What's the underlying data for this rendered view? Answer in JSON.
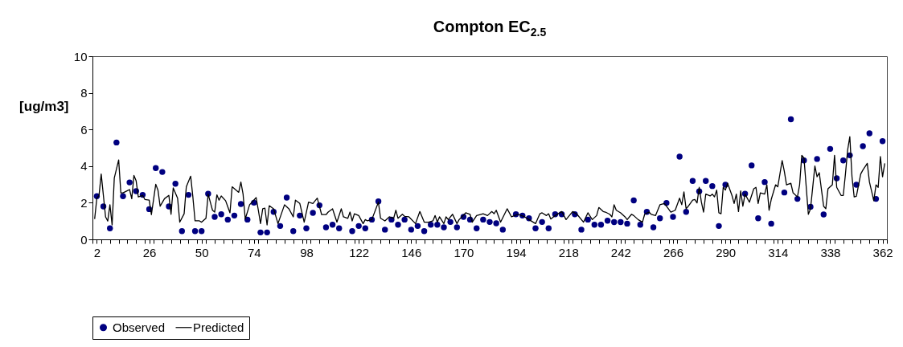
{
  "chart_data": {
    "type": "line",
    "title": "Compton  EC$_{2.5}$",
    "ylabel": "[ug/m3]",
    "legend": "bottom",
    "xlim": [
      0,
      364
    ],
    "xticks": [
      2,
      26,
      50,
      74,
      98,
      122,
      146,
      170,
      194,
      218,
      242,
      266,
      290,
      314,
      338,
      362,
      {
        "value": 0,
        "label": null
      },
      {
        "value": 4,
        "label": null
      },
      {
        "value": 8,
        "label": null
      },
      {
        "value": 12,
        "label": null
      },
      {
        "value": 16,
        "label": null
      },
      {
        "value": 20,
        "label": null
      },
      {
        "value": 24,
        "label": null
      },
      {
        "value": 28,
        "label": null
      },
      {
        "value": 32,
        "label": null
      },
      {
        "value": 36,
        "label": null
      },
      {
        "value": 40,
        "label": null
      },
      {
        "value": 44,
        "label": null
      },
      {
        "value": 48,
        "label": null
      },
      {
        "value": 52,
        "label": null
      },
      {
        "value": 56,
        "label": null
      },
      {
        "value": 60,
        "label": null
      },
      {
        "value": 64,
        "label": null
      },
      {
        "value": 68,
        "label": null
      },
      {
        "value": 72,
        "label": null
      },
      {
        "value": 76,
        "label": null
      },
      {
        "value": 80,
        "label": null
      },
      {
        "value": 84,
        "label": null
      },
      {
        "value": 88,
        "label": null
      },
      {
        "value": 92,
        "label": null
      },
      {
        "value": 96,
        "label": null
      },
      {
        "value": 100,
        "label": null
      },
      {
        "value": 104,
        "label": null
      },
      {
        "value": 108,
        "label": null
      },
      {
        "value": 112,
        "label": null
      },
      {
        "value": 116,
        "label": null
      },
      {
        "value": 120,
        "label": null
      },
      {
        "value": 124,
        "label": null
      },
      {
        "value": 128,
        "label": null
      },
      {
        "value": 132,
        "label": null
      },
      {
        "value": 136,
        "label": null
      },
      {
        "value": 140,
        "label": null
      },
      {
        "value": 144,
        "label": null
      },
      {
        "value": 148,
        "label": null
      },
      {
        "value": 152,
        "label": null
      },
      {
        "value": 156,
        "label": null
      },
      {
        "value": 160,
        "label": null
      },
      {
        "value": 164,
        "label": null
      },
      {
        "value": 168,
        "label": null
      },
      {
        "value": 172,
        "label": null
      },
      {
        "value": 176,
        "label": null
      },
      {
        "value": 180,
        "label": null
      },
      {
        "value": 184,
        "label": null
      },
      {
        "value": 188,
        "label": null
      },
      {
        "value": 192,
        "label": null
      },
      {
        "value": 196,
        "label": null
      },
      {
        "value": 200,
        "label": null
      },
      {
        "value": 204,
        "label": null
      },
      {
        "value": 208,
        "label": null
      },
      {
        "value": 212,
        "label": null
      },
      {
        "value": 216,
        "label": null
      },
      {
        "value": 220,
        "label": null
      },
      {
        "value": 224,
        "label": null
      },
      {
        "value": 228,
        "label": null
      },
      {
        "value": 232,
        "label": null
      },
      {
        "value": 236,
        "label": null
      },
      {
        "value": 240,
        "label": null
      },
      {
        "value": 244,
        "label": null
      },
      {
        "value": 248,
        "label": null
      },
      {
        "value": 252,
        "label": null
      },
      {
        "value": 256,
        "label": null
      },
      {
        "value": 260,
        "label": null
      },
      {
        "value": 264,
        "label": null
      },
      {
        "value": 268,
        "label": null
      },
      {
        "value": 272,
        "label": null
      },
      {
        "value": 276,
        "label": null
      },
      {
        "value": 280,
        "label": null
      },
      {
        "value": 284,
        "label": null
      },
      {
        "value": 288,
        "label": null
      },
      {
        "value": 292,
        "label": null
      },
      {
        "value": 296,
        "label": null
      },
      {
        "value": 300,
        "label": null
      },
      {
        "value": 304,
        "label": null
      },
      {
        "value": 308,
        "label": null
      },
      {
        "value": 312,
        "label": null
      },
      {
        "value": 316,
        "label": null
      },
      {
        "value": 320,
        "label": null
      },
      {
        "value": 324,
        "label": null
      },
      {
        "value": 328,
        "label": null
      },
      {
        "value": 332,
        "label": null
      },
      {
        "value": 336,
        "label": null
      },
      {
        "value": 340,
        "label": null
      },
      {
        "value": 344,
        "label": null
      },
      {
        "value": 348,
        "label": null
      },
      {
        "value": 352,
        "label": null
      },
      {
        "value": 356,
        "label": null
      },
      {
        "value": 360,
        "label": null
      },
      {
        "value": 364,
        "label": null
      }
    ],
    "ylim": [
      0,
      10
    ],
    "yticks": [
      0,
      2,
      4,
      6,
      8,
      10
    ],
    "series": [
      {
        "name": "Observed",
        "type": "scatter",
        "marker": "circle",
        "color": "#000080",
        "x": [
          2,
          5,
          8,
          11,
          14,
          17,
          20,
          23,
          26,
          29,
          32,
          35,
          38,
          41,
          44,
          47,
          50,
          53,
          56,
          59,
          62,
          65,
          68,
          71,
          74,
          77,
          80,
          83,
          86,
          89,
          92,
          95,
          98,
          101,
          104,
          107,
          110,
          113,
          119,
          122,
          125,
          128,
          131,
          134,
          137,
          140,
          143,
          146,
          149,
          152,
          155,
          158,
          161,
          164,
          167,
          170,
          173,
          176,
          179,
          182,
          185,
          188,
          194,
          197,
          200,
          203,
          206,
          209,
          212,
          215,
          221,
          224,
          227,
          230,
          233,
          236,
          239,
          242,
          245,
          248,
          251,
          254,
          257,
          260,
          263,
          266,
          269,
          272,
          275,
          278,
          281,
          284,
          287,
          290,
          299,
          302,
          305,
          308,
          311,
          317,
          320,
          323,
          326,
          329,
          332,
          335,
          338,
          341,
          344,
          347,
          350,
          353,
          356,
          359,
          362
        ],
        "values": [
          2.36,
          1.8,
          0.6,
          5.29,
          2.36,
          3.11,
          2.63,
          2.43,
          1.65,
          3.89,
          3.68,
          1.8,
          3.04,
          0.45,
          2.43,
          0.45,
          0.45,
          2.49,
          1.23,
          1.37,
          1.08,
          1.3,
          1.93,
          1.08,
          2.0,
          0.38,
          0.38,
          1.5,
          0.73,
          2.28,
          0.45,
          1.3,
          0.6,
          1.45,
          1.86,
          0.66,
          0.8,
          0.6,
          0.45,
          0.73,
          0.6,
          1.08,
          2.07,
          0.53,
          1.08,
          0.8,
          1.08,
          0.53,
          0.73,
          0.45,
          0.8,
          0.8,
          0.66,
          0.95,
          0.66,
          1.23,
          1.08,
          0.6,
          1.08,
          0.95,
          0.88,
          0.53,
          1.37,
          1.3,
          1.15,
          0.6,
          0.95,
          0.6,
          1.37,
          1.37,
          1.37,
          0.53,
          1.08,
          0.8,
          0.8,
          1.02,
          0.94,
          0.94,
          0.86,
          2.13,
          0.8,
          1.5,
          0.66,
          1.15,
          1.99,
          1.23,
          4.52,
          1.5,
          3.19,
          2.62,
          3.19,
          2.91,
          0.73,
          2.98,
          2.49,
          4.04,
          1.15,
          3.13,
          0.86,
          2.56,
          6.56,
          2.21,
          4.31,
          1.78,
          4.39,
          1.36,
          4.94,
          3.33,
          4.31,
          4.59,
          2.98,
          5.09,
          5.79,
          2.21,
          5.36
        ]
      },
      {
        "name": "Predicted",
        "type": "line",
        "color": "#000000",
        "x": [
          1,
          2,
          3,
          4,
          6,
          7,
          8,
          9,
          10,
          12,
          13,
          14,
          16,
          17,
          18,
          19,
          20,
          21,
          23,
          24,
          26,
          27,
          29,
          30,
          31,
          33,
          35,
          36,
          37,
          39,
          40,
          42,
          43,
          45,
          46,
          47,
          49,
          50,
          52,
          53,
          55,
          56,
          57,
          58,
          59,
          61,
          63,
          64,
          67,
          68,
          69,
          70,
          72,
          75,
          76,
          77,
          78,
          79,
          80,
          81,
          83,
          85,
          88,
          90,
          92,
          93,
          95,
          97,
          99,
          101,
          103,
          105,
          107,
          108,
          110,
          112,
          114,
          115,
          117,
          118,
          119,
          120,
          122,
          124,
          125,
          126,
          128,
          131,
          132,
          134,
          136,
          138,
          139,
          140,
          142,
          143,
          145,
          148,
          150,
          152,
          154,
          156,
          157,
          158,
          159,
          161,
          162,
          163,
          165,
          167,
          168,
          171,
          173,
          174,
          176,
          179,
          181,
          183,
          184,
          185,
          187,
          190,
          192,
          195,
          198,
          200,
          203,
          205,
          206,
          208,
          209,
          210,
          212,
          215,
          217,
          220,
          222,
          225,
          227,
          229,
          231,
          232,
          234,
          235,
          237,
          238,
          239,
          240,
          242,
          244,
          245,
          247,
          248,
          250,
          252,
          253,
          255,
          256,
          258,
          260,
          262,
          263,
          265,
          267,
          269,
          270,
          271,
          272,
          273,
          275,
          276,
          277,
          278,
          279,
          280,
          281,
          283,
          284,
          285,
          286,
          287,
          288,
          289,
          290,
          291,
          293,
          294,
          295,
          296,
          297,
          298,
          299,
          301,
          303,
          304,
          305,
          306,
          308,
          309,
          310,
          311,
          313,
          314,
          316,
          317,
          318,
          320,
          321,
          323,
          324,
          325,
          326,
          328,
          329,
          331,
          332,
          333,
          335,
          336,
          337,
          339,
          340,
          341,
          343,
          344,
          345,
          346,
          347,
          348,
          349,
          350,
          352,
          353,
          355,
          356,
          358,
          359,
          360,
          361,
          362,
          363
        ],
        "values": [
          1.11,
          2.25,
          2.4,
          3.57,
          1.23,
          1.0,
          1.89,
          0.79,
          3.35,
          4.34,
          2.54,
          2.54,
          2.66,
          2.72,
          2.22,
          3.49,
          3.2,
          2.32,
          2.4,
          2.18,
          2.14,
          1.35,
          3.01,
          2.69,
          1.81,
          2.22,
          2.4,
          1.37,
          2.81,
          2.25,
          0.94,
          1.4,
          2.87,
          3.45,
          2.32,
          1.01,
          1.01,
          0.94,
          1.15,
          2.47,
          1.59,
          1.49,
          2.43,
          2.14,
          2.37,
          2.11,
          1.45,
          2.87,
          2.57,
          3.13,
          2.47,
          1.11,
          1.89,
          2.28,
          1.59,
          0.86,
          1.67,
          1.7,
          0.79,
          1.84,
          1.67,
          0.86,
          1.89,
          1.67,
          1.23,
          2.14,
          1.96,
          0.94,
          2.03,
          1.96,
          2.25,
          1.35,
          1.35,
          1.49,
          1.67,
          0.94,
          1.67,
          1.23,
          1.15,
          1.49,
          1.01,
          1.4,
          1.3,
          0.86,
          1.08,
          1.01,
          1.08,
          2.03,
          1.15,
          1.01,
          1.23,
          1.15,
          1.59,
          1.15,
          1.37,
          1.26,
          1.23,
          0.86,
          1.52,
          0.94,
          0.94,
          1.01,
          1.3,
          0.94,
          1.23,
          0.86,
          1.23,
          1.08,
          1.37,
          0.86,
          1.08,
          1.45,
          1.37,
          0.94,
          1.3,
          1.4,
          1.3,
          1.52,
          1.4,
          1.59,
          0.94,
          1.67,
          1.23,
          1.37,
          1.23,
          1.08,
          0.86,
          1.4,
          1.45,
          1.3,
          1.4,
          1.11,
          1.3,
          1.52,
          1.08,
          1.52,
          1.37,
          0.94,
          1.45,
          1.08,
          1.3,
          1.74,
          1.52,
          1.49,
          1.37,
          1.23,
          1.89,
          1.59,
          1.45,
          1.23,
          1.08,
          1.37,
          1.3,
          1.08,
          0.94,
          1.37,
          1.49,
          1.37,
          1.3,
          1.89,
          1.96,
          1.81,
          1.49,
          1.59,
          2.25,
          1.89,
          2.59,
          1.67,
          1.81,
          2.14,
          2.18,
          1.99,
          2.84,
          2.03,
          1.49,
          2.47,
          2.37,
          2.47,
          2.32,
          2.69,
          1.45,
          1.4,
          2.84,
          2.69,
          3.06,
          2.4,
          1.96,
          2.47,
          1.52,
          2.65,
          1.81,
          2.47,
          2.03,
          2.76,
          2.84,
          1.96,
          2.54,
          2.47,
          2.98,
          1.59,
          2.18,
          2.98,
          2.87,
          4.3,
          3.71,
          2.98,
          3.06,
          2.54,
          2.32,
          2.98,
          4.59,
          4.44,
          1.37,
          1.67,
          4.01,
          3.42,
          3.64,
          1.81,
          1.67,
          2.76,
          2.98,
          4.59,
          2.84,
          2.4,
          2.4,
          3.57,
          4.88,
          5.61,
          3.42,
          2.32,
          2.35,
          3.57,
          3.79,
          4.15,
          3.13,
          2.11,
          2.98,
          2.84,
          4.52,
          3.42,
          4.15
        ]
      }
    ]
  }
}
